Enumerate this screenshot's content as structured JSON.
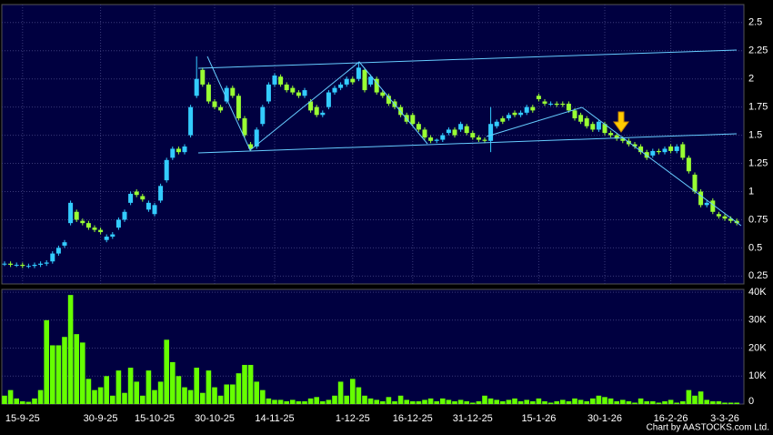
{
  "chart_data": {
    "type": "candlestick",
    "credit": "Chart by AASTOCKS.com Ltd.",
    "categories": [
      null,
      null,
      null,
      "15-9-25",
      null,
      null,
      null,
      null,
      null,
      null,
      null,
      null,
      null,
      null,
      null,
      null,
      "30-9-25",
      null,
      null,
      null,
      null,
      null,
      null,
      null,
      null,
      "15-10-25",
      null,
      null,
      null,
      null,
      null,
      null,
      null,
      null,
      null,
      "30-10-25",
      null,
      null,
      null,
      null,
      null,
      null,
      null,
      null,
      null,
      "14-11-25",
      null,
      null,
      null,
      null,
      null,
      null,
      null,
      null,
      null,
      null,
      null,
      null,
      "1-12-25",
      null,
      null,
      null,
      null,
      null,
      null,
      null,
      null,
      null,
      "16-12-25",
      null,
      null,
      null,
      null,
      null,
      null,
      null,
      null,
      null,
      "31-12-25",
      null,
      null,
      null,
      null,
      null,
      null,
      null,
      null,
      null,
      null,
      "15-1-26",
      null,
      null,
      null,
      null,
      null,
      null,
      null,
      null,
      null,
      null,
      "30-1-26",
      null,
      null,
      null,
      null,
      null,
      null,
      null,
      null,
      null,
      null,
      "16-2-26",
      null,
      null,
      null,
      null,
      null,
      null,
      null,
      null,
      "3-3-26",
      null,
      null
    ],
    "open": [
      0.36,
      0.36,
      0.35,
      0.35,
      0.34,
      0.34,
      0.35,
      0.36,
      0.38,
      0.45,
      0.52,
      0.72,
      0.82,
      0.74,
      0.72,
      0.68,
      0.66,
      0.57,
      0.6,
      0.68,
      0.75,
      0.9,
      1.0,
      0.96,
      0.84,
      0.8,
      0.92,
      1.1,
      1.3,
      1.38,
      1.35,
      1.5,
      1.85,
      2.08,
      1.95,
      1.8,
      1.75,
      1.8,
      1.92,
      1.85,
      1.65,
      1.42,
      1.4,
      1.6,
      1.8,
      1.95,
      2.02,
      1.95,
      1.92,
      1.88,
      1.85,
      1.8,
      1.75,
      1.68,
      1.75,
      1.88,
      1.92,
      1.95,
      2.0,
      2.0,
      2.08,
      1.95,
      2.0,
      1.88,
      1.85,
      1.8,
      1.75,
      1.68,
      1.68,
      1.6,
      1.55,
      1.48,
      1.45,
      1.46,
      1.52,
      1.55,
      1.55,
      1.58,
      1.52,
      1.48,
      1.46,
      1.45,
      1.58,
      1.65,
      1.65,
      1.7,
      1.68,
      1.7,
      1.75,
      1.85,
      1.8,
      1.78,
      1.78,
      1.78,
      1.78,
      1.72,
      1.68,
      1.65,
      1.6,
      1.55,
      1.6,
      1.52,
      1.5,
      1.47,
      1.45,
      1.42,
      1.4,
      1.35,
      1.32,
      1.36,
      1.35,
      1.4,
      1.36,
      1.42,
      1.3,
      1.15,
      1.0,
      0.88,
      0.92,
      0.8,
      0.78,
      0.76,
      0.74
    ],
    "high": [
      0.38,
      0.38,
      0.37,
      0.37,
      0.36,
      0.37,
      0.38,
      0.39,
      0.47,
      0.52,
      0.57,
      0.92,
      0.84,
      0.76,
      0.74,
      0.7,
      0.68,
      0.62,
      0.64,
      0.77,
      0.84,
      1.0,
      1.02,
      0.98,
      0.92,
      0.9,
      1.07,
      1.3,
      1.4,
      1.4,
      1.42,
      1.77,
      2.2,
      2.1,
      1.97,
      1.82,
      1.77,
      1.94,
      1.94,
      1.87,
      1.67,
      1.44,
      1.57,
      1.77,
      1.97,
      2.05,
      2.04,
      1.97,
      1.94,
      1.9,
      1.92,
      1.82,
      1.77,
      1.72,
      1.9,
      1.94,
      1.97,
      2.02,
      2.02,
      2.15,
      2.1,
      2.04,
      2.02,
      1.9,
      1.87,
      1.82,
      1.77,
      1.7,
      1.7,
      1.62,
      1.57,
      1.5,
      1.47,
      1.52,
      1.57,
      1.57,
      1.62,
      1.6,
      1.54,
      1.5,
      1.48,
      1.75,
      1.64,
      1.67,
      1.7,
      1.72,
      1.72,
      1.77,
      1.77,
      1.87,
      1.82,
      1.8,
      1.8,
      1.8,
      1.8,
      1.74,
      1.7,
      1.67,
      1.62,
      1.64,
      1.62,
      1.54,
      1.52,
      1.49,
      1.47,
      1.44,
      1.42,
      1.37,
      1.38,
      1.38,
      1.4,
      1.42,
      1.42,
      1.44,
      1.32,
      1.17,
      1.02,
      0.92,
      0.94,
      0.82,
      0.8,
      0.78,
      0.76
    ],
    "low": [
      0.34,
      0.33,
      0.33,
      0.32,
      0.32,
      0.32,
      0.33,
      0.34,
      0.36,
      0.43,
      0.5,
      0.7,
      0.73,
      0.7,
      0.66,
      0.64,
      0.62,
      0.55,
      0.58,
      0.66,
      0.73,
      0.88,
      0.95,
      0.91,
      0.82,
      0.78,
      0.9,
      1.08,
      1.28,
      1.33,
      1.33,
      1.48,
      1.83,
      1.93,
      1.78,
      1.73,
      1.7,
      1.78,
      1.83,
      1.63,
      1.48,
      1.36,
      1.38,
      1.58,
      1.78,
      1.93,
      1.93,
      1.88,
      1.86,
      1.83,
      1.83,
      1.7,
      1.66,
      1.66,
      1.73,
      1.86,
      1.9,
      1.93,
      1.95,
      1.98,
      1.88,
      1.93,
      1.86,
      1.83,
      1.76,
      1.73,
      1.66,
      1.6,
      1.58,
      1.53,
      1.46,
      1.43,
      1.43,
      1.44,
      1.5,
      1.48,
      1.53,
      1.5,
      1.46,
      1.44,
      1.43,
      1.35,
      1.56,
      1.6,
      1.63,
      1.66,
      1.66,
      1.68,
      1.7,
      1.8,
      1.76,
      1.76,
      1.75,
      1.75,
      1.7,
      1.63,
      1.6,
      1.56,
      1.53,
      1.53,
      1.5,
      1.48,
      1.45,
      1.43,
      1.4,
      1.38,
      1.33,
      1.28,
      1.3,
      1.33,
      1.33,
      1.34,
      1.34,
      1.28,
      1.16,
      0.98,
      0.86,
      0.86,
      0.8,
      0.76,
      0.74,
      0.72,
      0.7
    ],
    "close": [
      0.36,
      0.35,
      0.35,
      0.34,
      0.34,
      0.35,
      0.36,
      0.37,
      0.45,
      0.5,
      0.55,
      0.9,
      0.75,
      0.72,
      0.68,
      0.66,
      0.64,
      0.6,
      0.62,
      0.75,
      0.82,
      0.98,
      0.97,
      0.93,
      0.9,
      0.88,
      1.05,
      1.28,
      1.38,
      1.35,
      1.4,
      1.75,
      2.0,
      1.95,
      1.8,
      1.75,
      1.72,
      1.92,
      1.85,
      1.65,
      1.5,
      1.38,
      1.55,
      1.75,
      1.95,
      2.03,
      1.95,
      1.9,
      1.88,
      1.85,
      1.9,
      1.72,
      1.68,
      1.7,
      1.88,
      1.92,
      1.95,
      2.0,
      1.97,
      2.1,
      1.9,
      2.02,
      1.88,
      1.85,
      1.78,
      1.75,
      1.68,
      1.62,
      1.6,
      1.55,
      1.48,
      1.45,
      1.46,
      1.5,
      1.55,
      1.5,
      1.6,
      1.52,
      1.48,
      1.46,
      1.45,
      1.6,
      1.62,
      1.62,
      1.68,
      1.68,
      1.7,
      1.75,
      1.72,
      1.82,
      1.78,
      1.78,
      1.77,
      1.77,
      1.72,
      1.65,
      1.62,
      1.58,
      1.55,
      1.62,
      1.52,
      1.5,
      1.47,
      1.45,
      1.42,
      1.4,
      1.35,
      1.3,
      1.36,
      1.35,
      1.38,
      1.36,
      1.4,
      1.3,
      1.18,
      1.0,
      0.88,
      0.9,
      0.82,
      0.78,
      0.76,
      0.74,
      0.72
    ],
    "volume": [
      3000,
      5000,
      2000,
      1000,
      800,
      2000,
      5000,
      30000,
      21000,
      21000,
      24000,
      39000,
      25000,
      22000,
      9000,
      5000,
      6000,
      10000,
      3000,
      12000,
      4000,
      13000,
      8000,
      3000,
      12000,
      5000,
      8000,
      23000,
      15000,
      10000,
      6000,
      5000,
      13000,
      4000,
      12000,
      6000,
      3000,
      7000,
      7000,
      11000,
      14000,
      14000,
      8000,
      5000,
      2000,
      1500,
      1500,
      1000,
      1500,
      1000,
      1000,
      2000,
      2500,
      1000,
      1500,
      3000,
      8000,
      3000,
      9000,
      6000,
      3000,
      2000,
      1500,
      1000,
      2500,
      1000,
      3000,
      1500,
      1000,
      1000,
      1500,
      2000,
      1000,
      2000,
      1500,
      1000,
      1500,
      1000,
      500,
      1000,
      3000,
      2000,
      1500,
      1000,
      1500,
      2000,
      1000,
      1500,
      1000,
      2000,
      1000,
      500,
      1000,
      1500,
      1000,
      2000,
      1500,
      1000,
      2000,
      3000,
      2500,
      2000,
      1000,
      1500,
      1000,
      500,
      2000,
      1000,
      1000,
      500,
      1000,
      1500,
      500,
      1000,
      5000,
      3000,
      4500,
      1500,
      1000,
      1000,
      500,
      500,
      500
    ],
    "up_color": "#33ccff",
    "down_color": "#99ff33",
    "volume_color": "#66ff00",
    "ylim": [
      0.18,
      2.66
    ],
    "yticks": [
      0.25,
      0.5,
      0.75,
      1,
      1.25,
      1.5,
      1.75,
      2,
      2.25,
      2.5
    ],
    "y2lim": [
      0,
      41000
    ],
    "y2ticks": [
      0,
      {
        "value": 10000,
        "label": "10K"
      },
      {
        "value": 20000,
        "label": "20K"
      },
      {
        "value": 30000,
        "label": "30K"
      },
      {
        "value": 40000,
        "label": "40K"
      }
    ],
    "grid": true
  }
}
